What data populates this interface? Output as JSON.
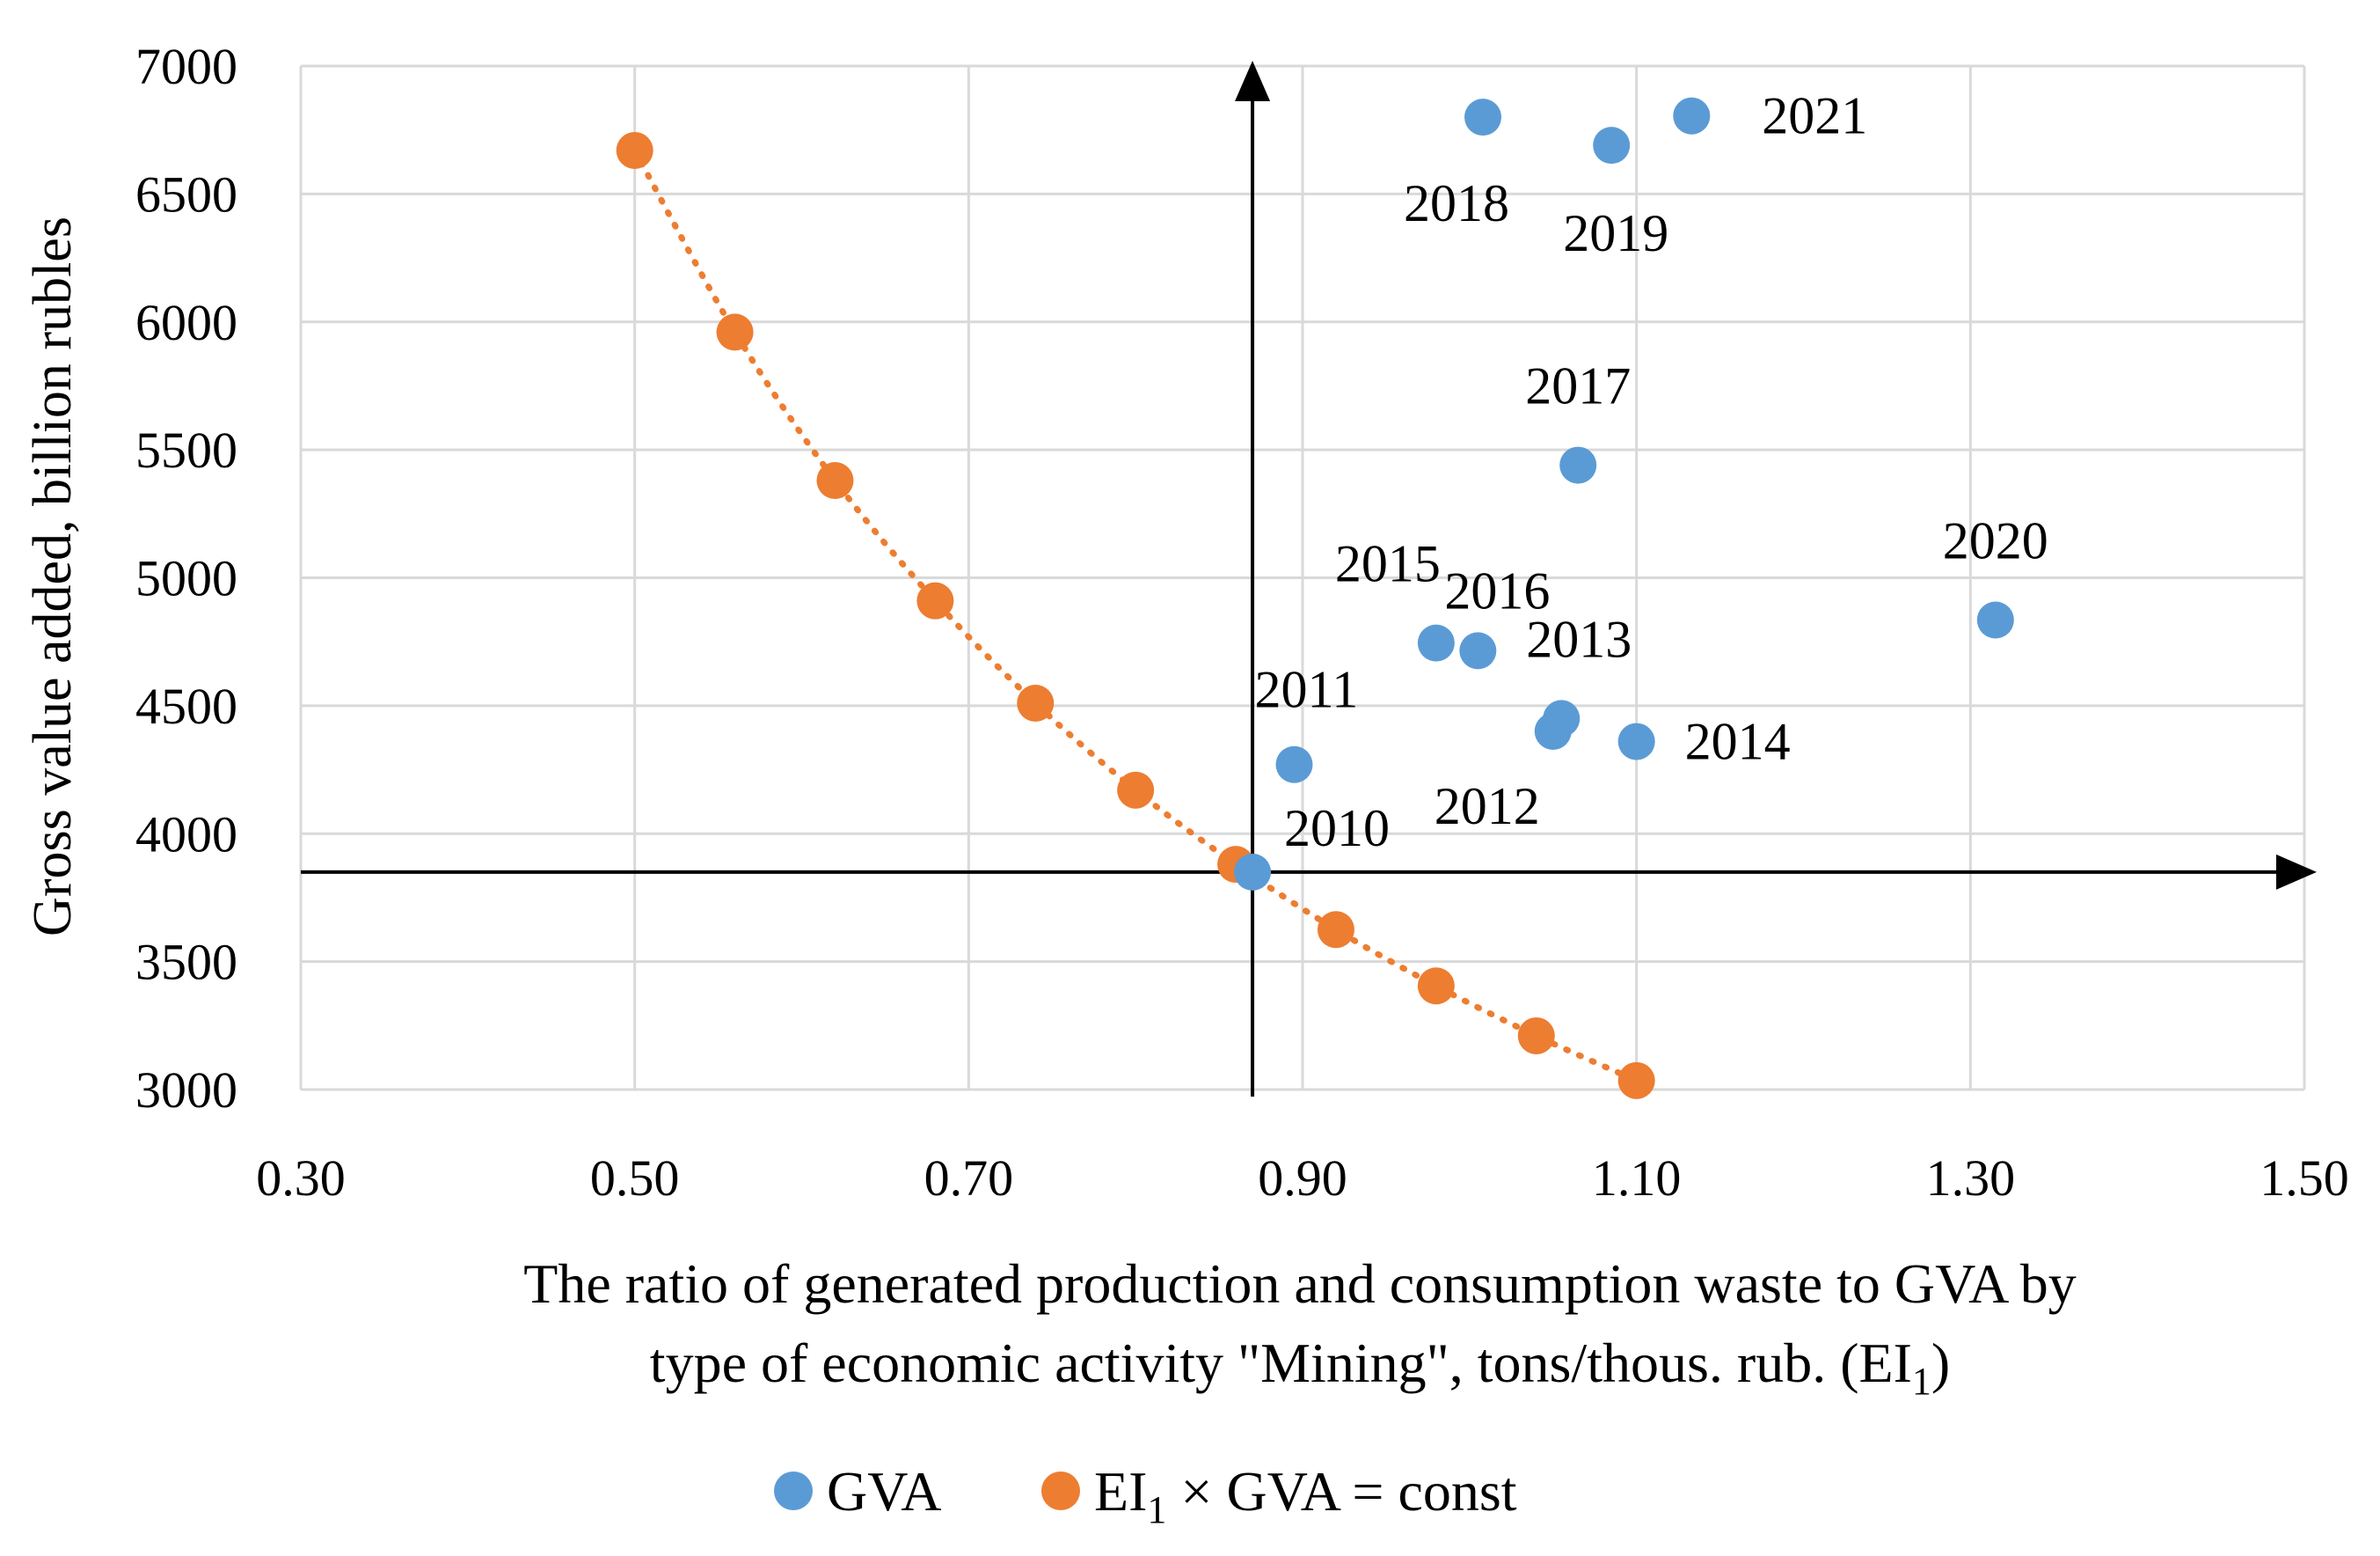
{
  "chart_data": {
    "type": "scatter",
    "xlabel_line1": "The ratio of generated production and consumption waste to GVA by",
    "xlabel_line2_pre": "type of economic activity \"Mining\", tons/thous. rub. (EI",
    "xlabel_line2_sub": "1",
    "xlabel_line2_post": ")",
    "ylabel": "Gross value added, billion rubles",
    "xlim": [
      0.3,
      1.5
    ],
    "ylim": [
      3000,
      7000
    ],
    "x_ticks": [
      "0.30",
      "0.50",
      "0.70",
      "0.90",
      "1.10",
      "1.30",
      "1.50"
    ],
    "y_ticks": [
      "3000",
      "3500",
      "4000",
      "4500",
      "5000",
      "5500",
      "6000",
      "6500",
      "7000"
    ],
    "reference_lines": {
      "x": 0.87,
      "y": 3850
    },
    "series": [
      {
        "name": "GVA",
        "color": "#5b9bd5",
        "points": [
          {
            "label": "2010",
            "x": 0.87,
            "y": 3850
          },
          {
            "label": "2011",
            "x": 0.895,
            "y": 4270
          },
          {
            "label": "2012",
            "x": 1.05,
            "y": 4400
          },
          {
            "label": "2013",
            "x": 1.055,
            "y": 4450
          },
          {
            "label": "2014",
            "x": 1.1,
            "y": 4360
          },
          {
            "label": "2015",
            "x": 0.98,
            "y": 4745
          },
          {
            "label": "2016",
            "x": 1.005,
            "y": 4715
          },
          {
            "label": "2017",
            "x": 1.065,
            "y": 5440
          },
          {
            "label": "2018",
            "x": 1.008,
            "y": 6800
          },
          {
            "label": "2019",
            "x": 1.085,
            "y": 6690
          },
          {
            "label": "2020",
            "x": 1.315,
            "y": 4835
          },
          {
            "label": "2021",
            "x": 1.133,
            "y": 6805
          }
        ]
      },
      {
        "name_pre": "EI",
        "name_sub": "1",
        "name_post": " × GVA = const",
        "color": "#ed7d31",
        "points": [
          {
            "x": 0.5,
            "y": 6670
          },
          {
            "x": 0.56,
            "y": 5960
          },
          {
            "x": 0.62,
            "y": 5380
          },
          {
            "x": 0.68,
            "y": 4910
          },
          {
            "x": 0.74,
            "y": 4510
          },
          {
            "x": 0.8,
            "y": 4170
          },
          {
            "x": 0.86,
            "y": 3880
          },
          {
            "x": 0.92,
            "y": 3625
          },
          {
            "x": 0.98,
            "y": 3405
          },
          {
            "x": 1.04,
            "y": 3210
          },
          {
            "x": 1.1,
            "y": 3035
          }
        ]
      }
    ]
  }
}
